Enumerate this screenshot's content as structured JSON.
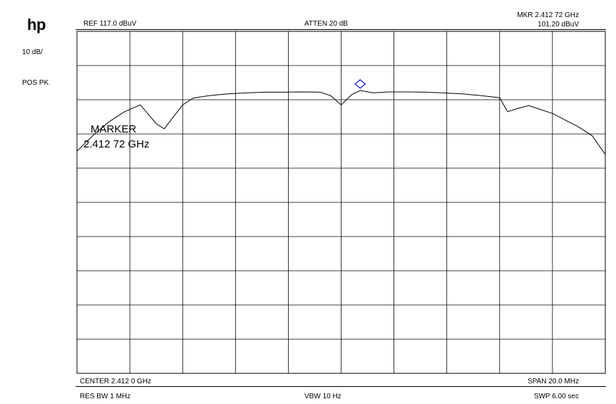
{
  "header": {
    "logo": "hp",
    "scale": "10 dB/",
    "detector": "POS PK",
    "ref_level": "REF  117.0 dBuV",
    "atten": "ATTEN 20 dB",
    "marker_freq": "MKR 2.412 72 GHz",
    "marker_amp": "101.20 dBuV"
  },
  "footer": {
    "center": "CENTER 2.412 0 GHz",
    "span": "SPAN 20.0 MHz",
    "rbw": "RES BW 1 MHz",
    "vbw": "VBW 10  Hz",
    "sweep": "SWP 6.00  sec"
  },
  "annotation": {
    "title": "MARKER",
    "value": "2.412 72 GHz"
  },
  "chart_data": {
    "type": "line",
    "x_range": [
      2.402,
      2.422
    ],
    "y_range": [
      17.0,
      117.0
    ],
    "divisions_x": 10,
    "divisions_y": 10,
    "grid": true,
    "marker": {
      "x": 2.41272,
      "y": 101.2
    },
    "series": [
      {
        "x": [
          2.402,
          2.4026,
          2.4032,
          2.4038,
          2.4044,
          2.405,
          2.4053,
          2.4057,
          2.406,
          2.4064,
          2.407,
          2.4077,
          2.4084,
          2.4091,
          2.4098,
          2.4105,
          2.4112,
          2.4116,
          2.412,
          2.4124,
          2.41272,
          2.4132,
          2.4138,
          2.4145,
          2.4152,
          2.4159,
          2.4166,
          2.4173,
          2.418,
          2.4183,
          2.4187,
          2.4191,
          2.4196,
          2.42,
          2.4205,
          2.421,
          2.4215,
          2.422
        ],
        "y": [
          82,
          86.5,
          90.5,
          93.5,
          95.5,
          90,
          88.5,
          92.5,
          95.5,
          97.5,
          98.2,
          98.7,
          99,
          99.2,
          99.2,
          99.3,
          99.2,
          98.2,
          95.5,
          98.5,
          99.7,
          99,
          99.3,
          99.3,
          99.2,
          99,
          98.7,
          98.2,
          97.6,
          93.5,
          94.5,
          95.3,
          94,
          93,
          91,
          89,
          86.5,
          81
        ]
      }
    ]
  }
}
